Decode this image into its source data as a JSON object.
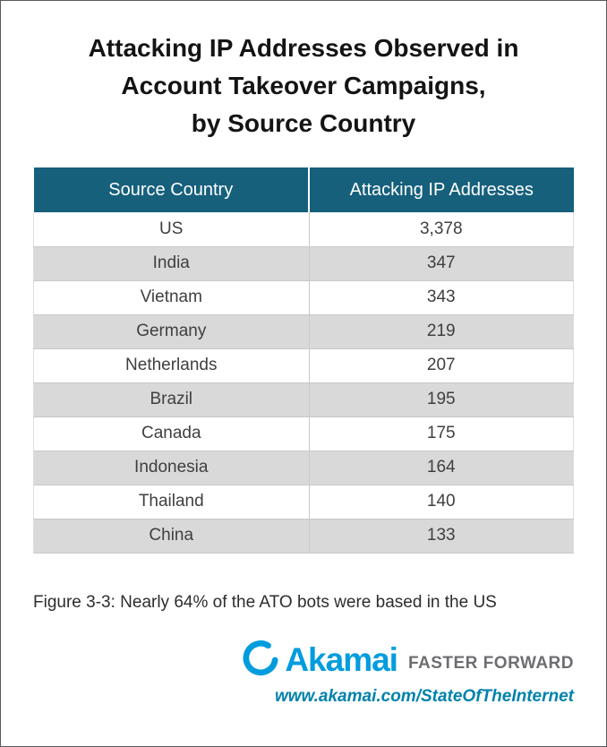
{
  "page": {
    "title_lines": [
      "Attacking IP Addresses Observed in",
      "Account Takeover Campaigns,",
      "by Source Country"
    ],
    "caption": "Figure 3-3: Nearly 64% of the ATO bots were based in the US"
  },
  "chart_data": {
    "type": "table",
    "title": "Attacking IP Addresses Observed in Account Takeover Campaigns, by Source Country",
    "columns": [
      "Source Country",
      "Attacking IP Addresses"
    ],
    "rows": [
      {
        "country": "US",
        "ips": 3378,
        "ips_display": "3,378"
      },
      {
        "country": "India",
        "ips": 347,
        "ips_display": "347"
      },
      {
        "country": "Vietnam",
        "ips": 343,
        "ips_display": "343"
      },
      {
        "country": "Germany",
        "ips": 219,
        "ips_display": "219"
      },
      {
        "country": "Netherlands",
        "ips": 207,
        "ips_display": "207"
      },
      {
        "country": "Brazil",
        "ips": 195,
        "ips_display": "195"
      },
      {
        "country": "Canada",
        "ips": 175,
        "ips_display": "175"
      },
      {
        "country": "Indonesia",
        "ips": 164,
        "ips_display": "164"
      },
      {
        "country": "Thailand",
        "ips": 140,
        "ips_display": "140"
      },
      {
        "country": "China",
        "ips": 133,
        "ips_display": "133"
      }
    ],
    "layout": {
      "header_row": true,
      "alternating_rows": true
    }
  },
  "footer": {
    "brand": "Akamai",
    "tagline": "FASTER FORWARD",
    "url": "www.akamai.com/StateOfTheInternet",
    "logo_icon": "akamai-wave-icon"
  },
  "colors": {
    "header_bg": "#16607C",
    "header_text": "#FFFFFF",
    "alt_row_bg": "#D9D9D9",
    "row_border": "#C9C9C9",
    "brand_blue": "#009CDE",
    "tagline_gray": "#6D6E71",
    "url_blue": "#0082AD",
    "page_border": "#58595B"
  }
}
